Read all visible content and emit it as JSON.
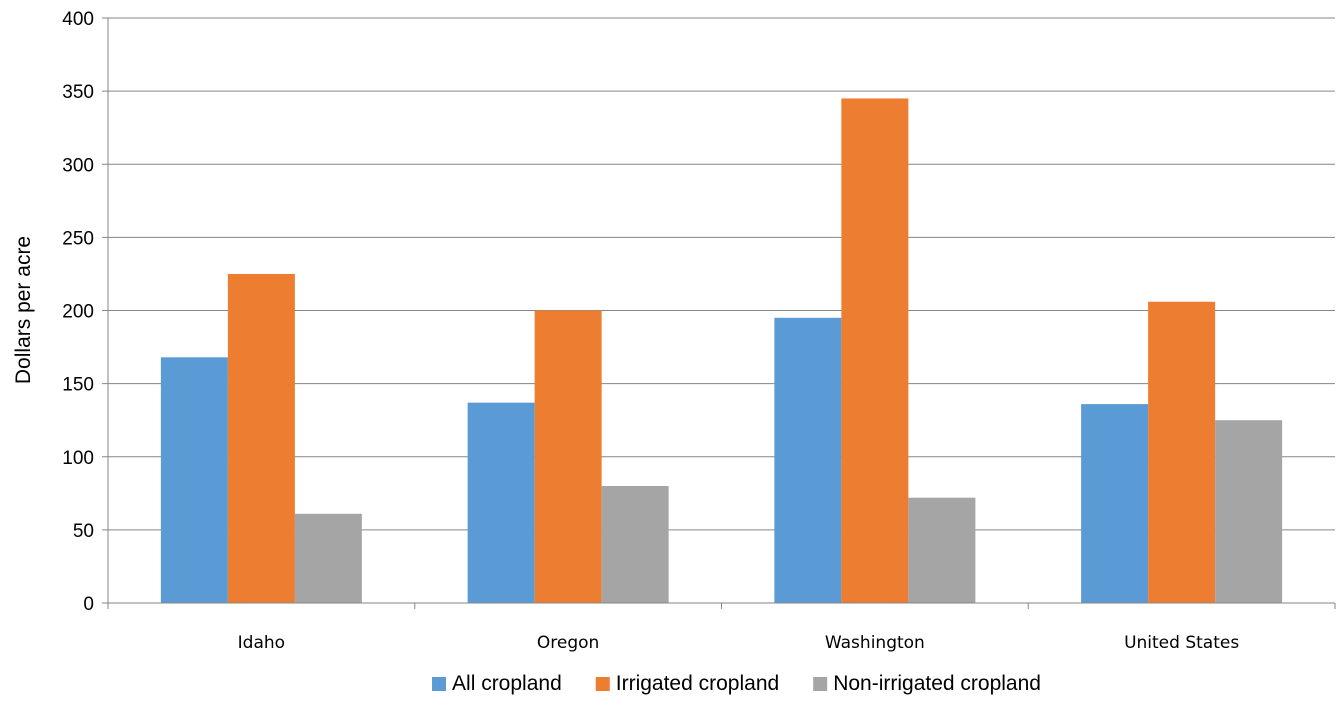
{
  "chart_data": {
    "type": "bar",
    "title": "",
    "xlabel": "",
    "ylabel": "Dollars per acre",
    "ylim": [
      0,
      400
    ],
    "yticks": [
      0,
      50,
      100,
      150,
      200,
      250,
      300,
      350,
      400
    ],
    "categories": [
      "Idaho",
      "Oregon",
      "Washington",
      "United States"
    ],
    "series": [
      {
        "name": "All cropland",
        "color": "#5B9BD5",
        "values": [
          168,
          137,
          195,
          136
        ]
      },
      {
        "name": "Irrigated cropland",
        "color": "#ED7D31",
        "values": [
          225,
          200,
          345,
          206
        ]
      },
      {
        "name": "Non-irrigated cropland",
        "color": "#A5A5A5",
        "values": [
          61,
          80,
          72,
          125
        ]
      }
    ],
    "grid": true,
    "legend_position": "bottom"
  }
}
